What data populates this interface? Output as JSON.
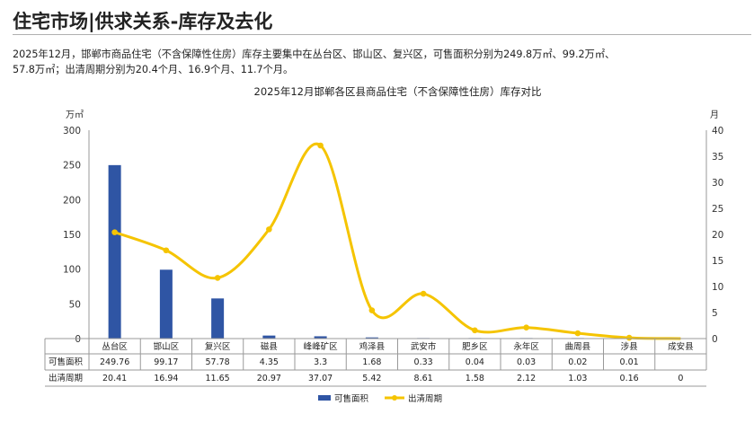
{
  "page": {
    "title": "住宅市场|供求关系-库存及去化",
    "summary_lines": [
      "2025年12月，邯郸市商品住宅（不含保障性住房）库存主要集中在丛台区、邯山区、复兴区，可售面积分别为249.8万㎡、99.2万㎡、",
      "57.8万㎡；出清周期分别为20.4个月、16.9个月、11.7个月。"
    ]
  },
  "chart_data": {
    "type": "bar+line",
    "title": "2025年12月邯郸各区县商品住宅（不含保障性住房）库存对比",
    "categories": [
      "丛台区",
      "邯山区",
      "复兴区",
      "磁县",
      "峰峰矿区",
      "鸡泽县",
      "武安市",
      "肥乡区",
      "永年区",
      "曲周县",
      "涉县",
      "成安县"
    ],
    "series": [
      {
        "name": "可售面积",
        "type": "bar",
        "axis": "left",
        "color": "#2f55a4",
        "values": [
          249.76,
          99.17,
          57.78,
          4.35,
          3.3,
          1.68,
          0.33,
          0.04,
          0.03,
          0.02,
          0.01,
          null
        ],
        "table_labels": [
          "249.76",
          "99.17",
          "57.78",
          "4.35",
          "3.3",
          "1.68",
          "0.33",
          "0.04",
          "0.03",
          "0.02",
          "0.01",
          ""
        ]
      },
      {
        "name": "出清周期",
        "type": "line",
        "axis": "right",
        "color": "#f5c400",
        "values": [
          20.41,
          16.94,
          11.65,
          20.97,
          37.07,
          5.42,
          8.61,
          1.58,
          2.12,
          1.03,
          0.16,
          0
        ],
        "table_labels": [
          "20.41",
          "16.94",
          "11.65",
          "20.97",
          "37.07",
          "5.42",
          "8.61",
          "1.58",
          "2.12",
          "1.03",
          "0.16",
          "0"
        ]
      }
    ],
    "y_left": {
      "unit": "万㎡",
      "ylim": [
        0,
        300
      ],
      "ticks": [
        0,
        50,
        100,
        150,
        200,
        250,
        300
      ]
    },
    "y_right": {
      "unit": "月",
      "ylim": [
        0,
        40
      ],
      "ticks": [
        0,
        5,
        10,
        15,
        20,
        25,
        30,
        35,
        40
      ]
    },
    "legend_position": "bottom",
    "data_table": true
  }
}
